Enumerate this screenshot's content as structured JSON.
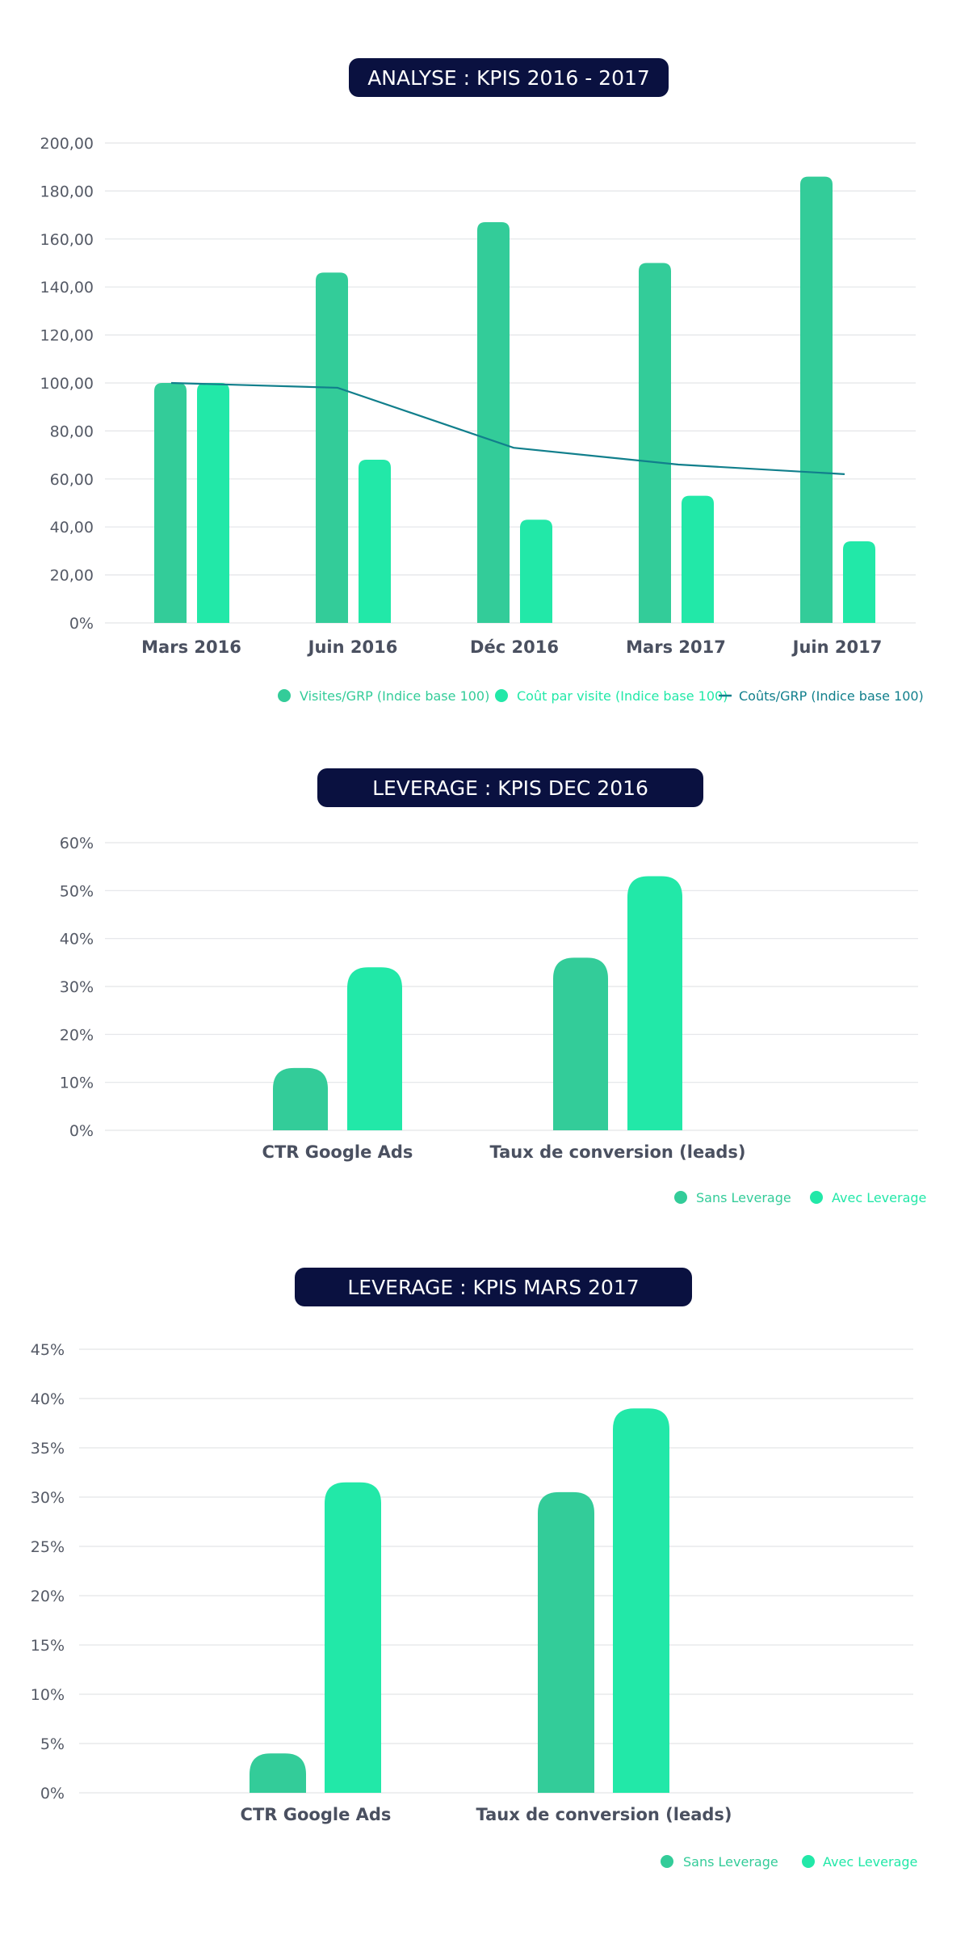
{
  "colors": {
    "dark_green": "#33cc99",
    "light_green": "#22e8a8",
    "line": "#117f8c",
    "pill": "#0a1140",
    "grid": "#e3e5e8"
  },
  "chart_data": [
    {
      "type": "bar",
      "title": "ANALYSE : KPIS 2016 - 2017",
      "categories": [
        "Mars 2016",
        "Juin 2016",
        "Déc 2016",
        "Mars 2017",
        "Juin 2017"
      ],
      "yticks": [
        "0%",
        "20,00",
        "40,00",
        "60,00",
        "80,00",
        "100,00",
        "120,00",
        "140,00",
        "160,00",
        "180,00",
        "200,00"
      ],
      "ylim": [
        0,
        200
      ],
      "grid": true,
      "legend_position": "bottom-right",
      "series": [
        {
          "name": "Visites/GRP (Indice base 100)",
          "type": "bar",
          "color": "#33cc99",
          "values": [
            100,
            146,
            167,
            150,
            186
          ]
        },
        {
          "name": "Coût par visite (Indice base 100)",
          "type": "bar",
          "color": "#22e8a8",
          "values": [
            100,
            68,
            43,
            53,
            34
          ]
        },
        {
          "name": "Coûts/GRP (Indice base 100)",
          "type": "line",
          "color": "#117f8c",
          "values": [
            100,
            98,
            73,
            66,
            62
          ]
        }
      ]
    },
    {
      "type": "bar",
      "title": "LEVERAGE : KPIS DEC 2016",
      "categories": [
        "CTR Google Ads",
        "Taux de conversion (leads)"
      ],
      "yticks": [
        "0%",
        "10%",
        "20%",
        "30%",
        "40%",
        "50%",
        "60%"
      ],
      "ylim": [
        0,
        60
      ],
      "grid": true,
      "legend_position": "bottom-right",
      "series": [
        {
          "name": "Sans Leverage",
          "color": "#33cc99",
          "values": [
            13,
            36
          ]
        },
        {
          "name": "Avec Leverage",
          "color": "#22e8a8",
          "values": [
            34,
            53
          ]
        }
      ]
    },
    {
      "type": "bar",
      "title": "LEVERAGE : KPIS MARS 2017",
      "categories": [
        "CTR Google Ads",
        "Taux de conversion (leads)"
      ],
      "yticks": [
        "0%",
        "5%",
        "10%",
        "15%",
        "20%",
        "25%",
        "30%",
        "35%",
        "40%",
        "45%"
      ],
      "ylim": [
        0,
        45
      ],
      "grid": true,
      "legend_position": "bottom-right",
      "series": [
        {
          "name": "Sans Leverage",
          "color": "#33cc99",
          "values": [
            4,
            30.5
          ]
        },
        {
          "name": "Avec Leverage",
          "color": "#22e8a8",
          "values": [
            31.5,
            39
          ]
        }
      ]
    }
  ]
}
